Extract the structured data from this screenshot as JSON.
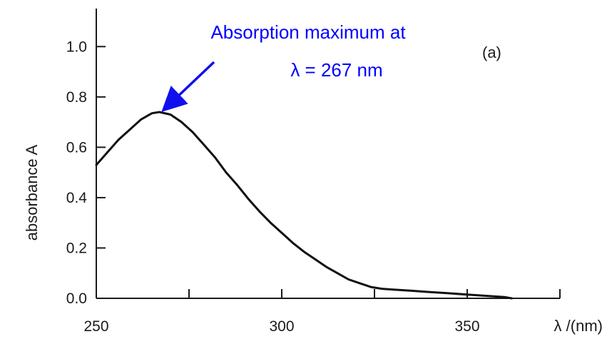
{
  "chart_data": {
    "type": "line",
    "panel_label": "(a)",
    "xlabel": "λ /(nm)",
    "ylabel": "absorbance A",
    "xlim": [
      250,
      375
    ],
    "ylim": [
      0.0,
      1.1
    ],
    "x_ticks": [
      250,
      300,
      350
    ],
    "x_minor_ticks": [
      275,
      325,
      375
    ],
    "y_ticks": [
      0.0,
      0.2,
      0.4,
      0.6,
      0.8,
      1.0
    ],
    "y_tick_labels": [
      "0.0",
      "0.2",
      "0.4",
      "0.6",
      "0.8",
      "1.0"
    ],
    "grid": false,
    "series": [
      {
        "x": [
          250,
          253,
          256,
          259,
          262,
          265,
          267,
          270,
          273,
          276,
          279,
          282,
          285,
          288,
          291,
          294,
          297,
          300,
          303,
          306,
          309,
          312,
          315,
          318,
          321,
          324,
          327,
          330,
          335,
          340,
          345,
          350,
          355,
          360,
          362
        ],
        "y": [
          0.53,
          0.58,
          0.63,
          0.67,
          0.71,
          0.735,
          0.74,
          0.73,
          0.7,
          0.66,
          0.61,
          0.56,
          0.5,
          0.45,
          0.395,
          0.345,
          0.3,
          0.26,
          0.22,
          0.185,
          0.155,
          0.125,
          0.1,
          0.075,
          0.06,
          0.045,
          0.038,
          0.035,
          0.03,
          0.025,
          0.02,
          0.015,
          0.01,
          0.005,
          0.0
        ],
        "color": "#111111"
      }
    ],
    "annotation": {
      "lines": [
        "Absorption maximum at",
        "λ = 267 nm"
      ],
      "color": "#0000ff",
      "arrow_target": {
        "x": 267,
        "y": 0.74
      }
    }
  }
}
